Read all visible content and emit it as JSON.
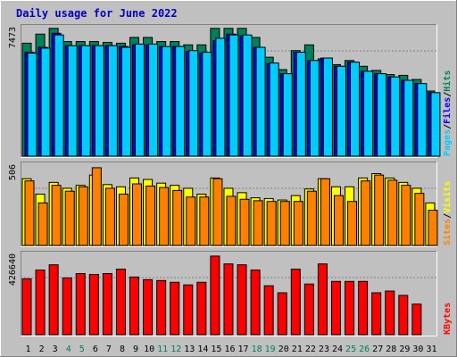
{
  "chart_data": {
    "type": "bar",
    "title": "Daily usage for June 2022",
    "categories": [
      "1",
      "2",
      "3",
      "4",
      "5",
      "6",
      "7",
      "8",
      "9",
      "10",
      "11",
      "12",
      "13",
      "14",
      "15",
      "16",
      "17",
      "18",
      "19",
      "20",
      "21",
      "22",
      "23",
      "24",
      "25",
      "26",
      "27",
      "28",
      "29",
      "30",
      "31"
    ],
    "weekend_days": [
      "4",
      "5",
      "11",
      "12",
      "18",
      "19",
      "25",
      "26"
    ],
    "panels": [
      {
        "name": "hits-files-pages",
        "max_label": "7473",
        "ymax": 7900,
        "series": [
          {
            "name": "Hits",
            "color": "#00805c",
            "values": [
              6850,
              7400,
              7750,
              6950,
              6950,
              6950,
              6900,
              6850,
              7200,
              7200,
              6950,
              6950,
              6750,
              6750,
              7750,
              7750,
              7750,
              7200,
              6000,
              5250,
              6400,
              6750,
              5900,
              5550,
              5800,
              5450,
              5200,
              4950,
              4900,
              4650,
              3950
            ]
          },
          {
            "name": "Files",
            "color": "#0000ff",
            "values": [
              6300,
              6600,
              7450,
              6700,
              6700,
              6700,
              6700,
              6650,
              6750,
              6750,
              6650,
              6650,
              6350,
              6250,
              7000,
              7400,
              7300,
              6600,
              5600,
              5000,
              6300,
              5800,
              5950,
              5450,
              5700,
              5150,
              5000,
              4800,
              4600,
              4400,
              3850
            ]
          },
          {
            "name": "Pages",
            "color": "#00ccff",
            "values": [
              6250,
              6550,
              7350,
              6700,
              6700,
              6700,
              6700,
              6600,
              6800,
              6800,
              6650,
              6650,
              6400,
              6300,
              7150,
              7350,
              7350,
              6600,
              5650,
              5000,
              6300,
              5800,
              5950,
              5450,
              5700,
              5150,
              5000,
              4800,
              4600,
              4400,
              3850
            ]
          }
        ],
        "ylabel_parts": [
          {
            "text": "Pages",
            "color": "#00ccff"
          },
          {
            "text": "/",
            "color": "#000000"
          },
          {
            "text": "Files",
            "color": "#0000ff"
          },
          {
            "text": "/",
            "color": "#000000"
          },
          {
            "text": "Hits",
            "color": "#00805c"
          }
        ]
      },
      {
        "name": "visits-sites",
        "max_label": "506",
        "ymax": 560,
        "series": [
          {
            "name": "Visits",
            "color": "#ffff00",
            "values": [
              455,
              350,
              430,
              390,
              410,
              480,
              415,
              400,
              460,
              450,
              425,
              410,
              390,
              350,
              460,
              390,
              360,
              325,
              320,
              310,
              340,
              385,
              455,
              400,
              400,
              460,
              490,
              460,
              430,
              390,
              290
            ]
          },
          {
            "name": "Sites",
            "color": "#ff8000",
            "values": [
              440,
              290,
              410,
              370,
              400,
              530,
              390,
              350,
              420,
              405,
              395,
              375,
              330,
              330,
              455,
              335,
              315,
              305,
              300,
              300,
              300,
              370,
              455,
              340,
              300,
              440,
              480,
              445,
              410,
              355,
              240
            ]
          }
        ],
        "ylabel_parts": [
          {
            "text": "Sites",
            "color": "#ff8000"
          },
          {
            "text": "/",
            "color": "#000000"
          },
          {
            "text": "Visits",
            "color": "#ffff00"
          }
        ]
      },
      {
        "name": "kbytes",
        "max_label": "426640",
        "ymax": 470000,
        "series": [
          {
            "name": "KBytes",
            "color": "#ff0000",
            "values": [
              320000,
              370000,
              400000,
              325000,
              350000,
              345000,
              350000,
              375000,
              330000,
              315000,
              310000,
              300000,
              285000,
              300000,
              450000,
              405000,
              400000,
              370000,
              280000,
              240000,
              375000,
              290000,
              405000,
              305000,
              305000,
              305000,
              240000,
              250000,
              225000,
              175000,
              0
            ]
          }
        ],
        "ylabel_parts": [
          {
            "text": "KBytes",
            "color": "#ff0000"
          }
        ]
      }
    ]
  }
}
